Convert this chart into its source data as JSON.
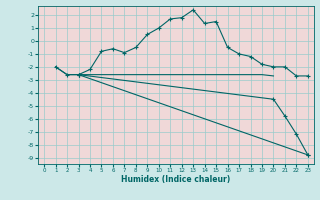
{
  "title": "",
  "xlabel": "Humidex (Indice chaleur)",
  "bg_color": "#cce8e8",
  "plot_bg_color": "#f0d8d8",
  "grid_color": "#99cccc",
  "line_color": "#006666",
  "xlim": [
    -0.5,
    23.5
  ],
  "ylim": [
    -9.5,
    2.7
  ],
  "yticks": [
    2,
    1,
    0,
    -1,
    -2,
    -3,
    -4,
    -5,
    -6,
    -7,
    -8,
    -9
  ],
  "xticks": [
    0,
    1,
    2,
    3,
    4,
    5,
    6,
    7,
    8,
    9,
    10,
    11,
    12,
    13,
    14,
    15,
    16,
    17,
    18,
    19,
    20,
    21,
    22,
    23
  ],
  "line1_x": [
    1,
    2,
    3,
    4,
    5,
    6,
    7,
    8,
    9,
    10,
    11,
    12,
    13,
    14,
    15,
    16,
    17,
    18,
    19,
    20,
    21,
    22,
    23
  ],
  "line1_y": [
    -2.0,
    -2.6,
    -2.6,
    -2.2,
    -0.8,
    -0.6,
    -0.9,
    -0.5,
    0.5,
    1.0,
    1.7,
    1.8,
    2.4,
    1.35,
    1.5,
    -0.5,
    -1.0,
    -1.2,
    -1.8,
    -2.0,
    -2.0,
    -2.7,
    -2.7
  ],
  "line2_x": [
    1,
    2,
    3,
    4,
    5,
    6,
    7,
    8,
    9,
    10,
    11,
    12,
    13,
    14,
    15,
    16,
    17,
    18,
    19,
    20
  ],
  "line2_y": [
    -2.0,
    -2.6,
    -2.6,
    -2.6,
    -2.6,
    -2.6,
    -2.6,
    -2.6,
    -2.6,
    -2.6,
    -2.6,
    -2.6,
    -2.6,
    -2.6,
    -2.6,
    -2.6,
    -2.6,
    -2.6,
    -2.6,
    -2.7
  ],
  "line3_x": [
    3,
    23
  ],
  "line3_y": [
    -2.6,
    -8.8
  ],
  "line4_x": [
    3,
    20,
    21,
    22,
    23
  ],
  "line4_y": [
    -2.6,
    -4.5,
    -5.8,
    -7.2,
    -8.8
  ]
}
